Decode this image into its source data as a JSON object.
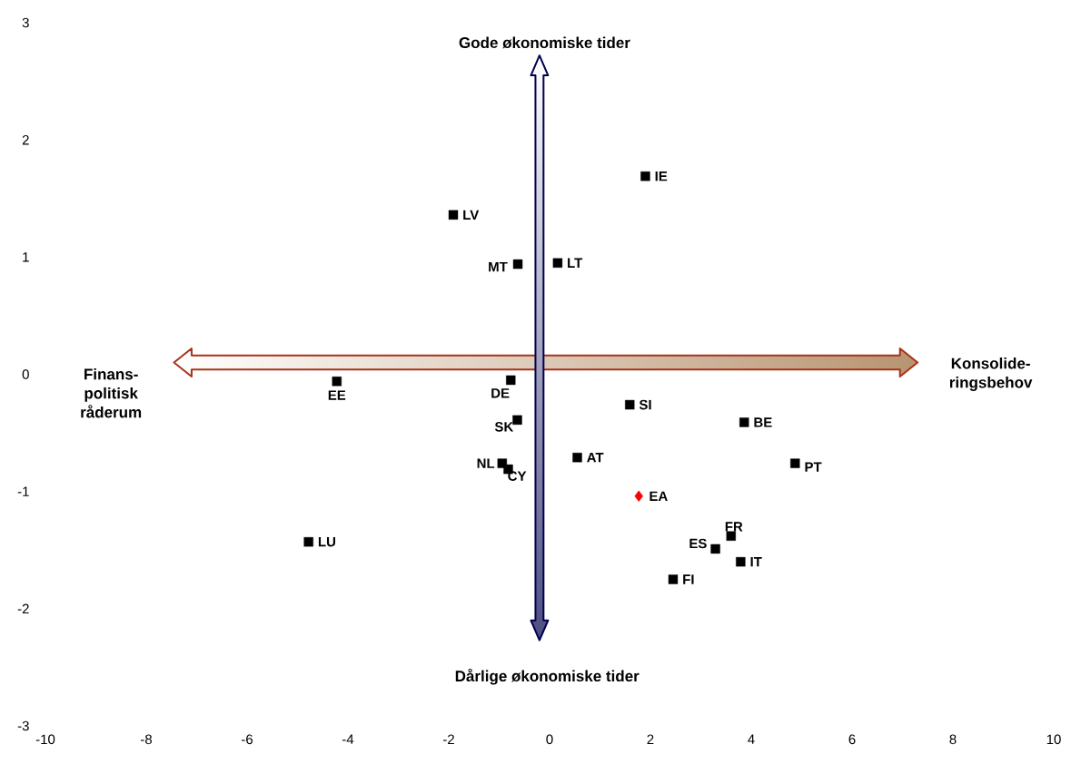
{
  "chart_data": {
    "type": "scatter",
    "xlim": [
      -10,
      10
    ],
    "ylim": [
      -3,
      3
    ],
    "xticks": [
      -10,
      -8,
      -6,
      -4,
      -2,
      0,
      2,
      4,
      6,
      8,
      10
    ],
    "yticks": [
      -3,
      -2,
      -1,
      0,
      1,
      2,
      3
    ],
    "series": [
      {
        "color": "#000000",
        "marker": "square",
        "x": [
          1.9,
          -1.91,
          -0.63,
          0.16,
          -4.22,
          -0.77,
          -0.64,
          1.59,
          3.86,
          0.55,
          -0.94,
          -0.82,
          4.87,
          -4.78,
          3.6,
          3.29,
          3.79,
          2.45
        ],
        "values": [
          1.69,
          1.36,
          0.94,
          0.95,
          -0.06,
          -0.05,
          -0.39,
          -0.26,
          -0.41,
          -0.71,
          -0.76,
          -0.81,
          -0.76,
          -1.43,
          -1.38,
          -1.49,
          -1.6,
          -1.75
        ]
      },
      {
        "color": "#ff0000",
        "marker": "diamond",
        "x": [
          1.77
        ],
        "values": [
          -1.04
        ]
      }
    ],
    "annotations": [
      {
        "text": "IE",
        "x": 1.9,
        "y": 1.69
      },
      {
        "text": "LV",
        "x": -1.91,
        "y": 1.36
      },
      {
        "text": "MT",
        "x": -0.63,
        "y": 0.94
      },
      {
        "text": "LT",
        "x": 0.16,
        "y": 0.95
      },
      {
        "text": "EE",
        "x": -4.22,
        "y": -0.06
      },
      {
        "text": "DE",
        "x": -0.77,
        "y": -0.05
      },
      {
        "text": "SK",
        "x": -0.64,
        "y": -0.39
      },
      {
        "text": "SI",
        "x": 1.59,
        "y": -0.26
      },
      {
        "text": "BE",
        "x": 3.86,
        "y": -0.41
      },
      {
        "text": "AT",
        "x": 0.55,
        "y": -0.71
      },
      {
        "text": "NL",
        "x": -0.94,
        "y": -0.76
      },
      {
        "text": "CY",
        "x": -0.82,
        "y": -0.81
      },
      {
        "text": "PT",
        "x": 4.87,
        "y": -0.76
      },
      {
        "text": "LU",
        "x": -4.78,
        "y": -1.43
      },
      {
        "text": "FR",
        "x": 3.6,
        "y": -1.38
      },
      {
        "text": "ES",
        "x": 3.29,
        "y": -1.49
      },
      {
        "text": "IT",
        "x": 3.79,
        "y": -1.6
      },
      {
        "text": "FI",
        "x": 2.45,
        "y": -1.75
      },
      {
        "text": "EA",
        "x": 1.77,
        "y": -1.04
      },
      "Gode økonomiske tider",
      "Dårlige økonomiske tider",
      "Finans-politisk råderum",
      "Konsolide-ringsbehov"
    ]
  }
}
